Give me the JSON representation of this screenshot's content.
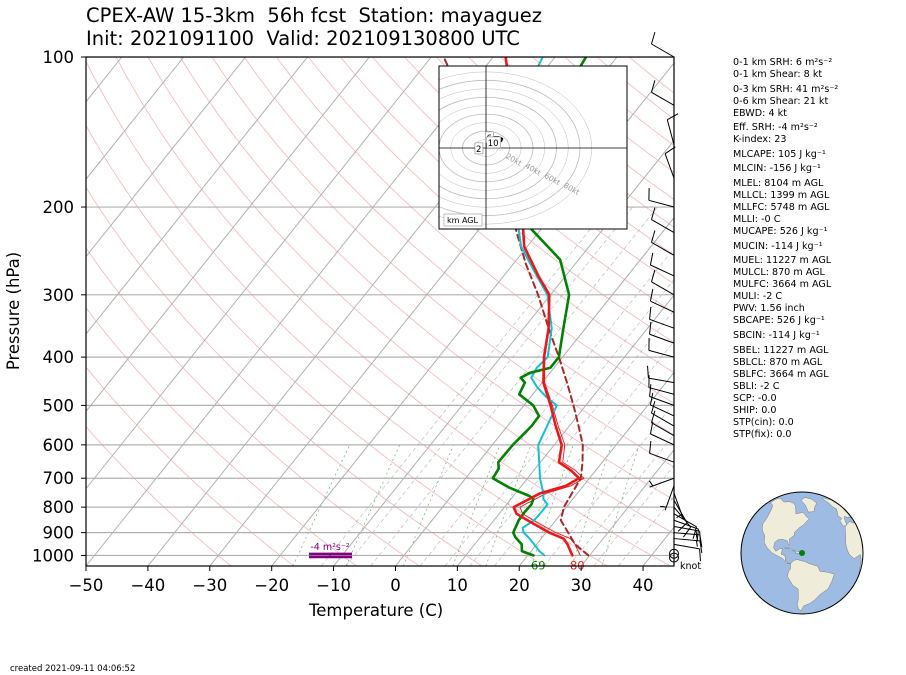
{
  "header": {
    "title_line1": "CPEX-AW 15-3km  56h fcst  Station: mayaguez",
    "title_line2": "Init: 2021091100  Valid: 202109130800 UTC"
  },
  "footer": {
    "created": "created 2021-09-11 04:06:52"
  },
  "stats": [
    {
      "text": "0-1 km SRH: 6 m²s⁻²"
    },
    {
      "text": "0-1 km Shear: 8 kt"
    },
    {
      "text": "0-3 km SRH: 41 m²s⁻²",
      "gap": true
    },
    {
      "text": "0-6 km Shear: 21 kt"
    },
    {
      "text": "EBWD: 4 kt"
    },
    {
      "text": "Eff. SRH: -4 m²s⁻²",
      "gap": true
    },
    {
      "text": "K-index: 23"
    },
    {
      "text": "MLCAPE: 105 J kg⁻¹",
      "gap": true
    },
    {
      "text": "MLCIN: -156 J kg⁻¹",
      "gap": true
    },
    {
      "text": "MLEL: 8104 m AGL",
      "gap": true
    },
    {
      "text": "MLLCL: 1399 m AGL"
    },
    {
      "text": "MLLFC: 5748 m AGL"
    },
    {
      "text": "MLLI: -0 C"
    },
    {
      "text": "MUCAPE: 526 J kg⁻¹"
    },
    {
      "text": "MUCIN: -114 J kg⁻¹",
      "gap": true
    },
    {
      "text": "MUEL: 11227 m AGL",
      "gap": true
    },
    {
      "text": "MULCL: 870 m AGL"
    },
    {
      "text": "MULFC: 3664 m AGL"
    },
    {
      "text": "MULI: -2 C"
    },
    {
      "text": "PWV: 1.56 inch"
    },
    {
      "text": "SBCAPE: 526 J kg⁻¹"
    },
    {
      "text": "SBCIN: -114 J kg⁻¹",
      "gap": true
    },
    {
      "text": "SBEL: 11227 m AGL",
      "gap": true
    },
    {
      "text": "SBLCL: 870 m AGL"
    },
    {
      "text": "SBLFC: 3664 m AGL"
    },
    {
      "text": "SBLI: -2 C"
    },
    {
      "text": "SCP: -0.0"
    },
    {
      "text": "SHIP: 0.0"
    },
    {
      "text": "STP(cin): 0.0"
    },
    {
      "text": "STP(fix): 0.0"
    }
  ],
  "chart_data": {
    "type": "line",
    "subtype": "skew-t log-p sounding",
    "xlabel": "Temperature (C)",
    "ylabel": "Pressure (hPa)",
    "xlim": [
      -50,
      45
    ],
    "ylim": [
      1050,
      100
    ],
    "y_scale": "log",
    "xticks": [
      "−50",
      "−40",
      "−30",
      "−20",
      "−10",
      "0",
      "10",
      "20",
      "30",
      "40"
    ],
    "xtick_values": [
      -50,
      -40,
      -30,
      -20,
      -10,
      0,
      10,
      20,
      30,
      40
    ],
    "yticks": [
      "100",
      "200",
      "300",
      "400",
      "500",
      "600",
      "700",
      "800",
      "900",
      "1000"
    ],
    "ytick_values": [
      100,
      200,
      300,
      400,
      500,
      600,
      700,
      800,
      900,
      1000
    ],
    "grid": true,
    "series": [
      {
        "key": "temperature",
        "color": "#e41a1c",
        "points": [
          [
            27.2,
            1000
          ],
          [
            25.0,
            950
          ],
          [
            23.6,
            925
          ],
          [
            20.5,
            900
          ],
          [
            18.0,
            875
          ],
          [
            15.4,
            850
          ],
          [
            12.8,
            825
          ],
          [
            11.5,
            800
          ],
          [
            14.0,
            750
          ],
          [
            17.2,
            725
          ],
          [
            18.3,
            700
          ],
          [
            16.0,
            675
          ],
          [
            13.0,
            650
          ],
          [
            11.2,
            600
          ],
          [
            7.8,
            550
          ],
          [
            4.3,
            500
          ],
          [
            0.2,
            450
          ],
          [
            -3.0,
            400
          ],
          [
            -6.0,
            350
          ],
          [
            -10.2,
            300
          ],
          [
            -14.4,
            275
          ],
          [
            -20.5,
            240
          ],
          [
            -26.0,
            200
          ],
          [
            -34.0,
            150
          ],
          [
            -42.0,
            120
          ],
          [
            -48.0,
            100
          ]
        ]
      },
      {
        "key": "dewpoint",
        "color": "#008000",
        "points": [
          [
            20.9,
            1000
          ],
          [
            18.5,
            980
          ],
          [
            17.6,
            950
          ],
          [
            15.7,
            920
          ],
          [
            14.7,
            900
          ],
          [
            14.0,
            850
          ],
          [
            13.9,
            820
          ],
          [
            14.0,
            790
          ],
          [
            13.6,
            770
          ],
          [
            12.6,
            760
          ],
          [
            8.1,
            730
          ],
          [
            4.4,
            700
          ],
          [
            4.1,
            670
          ],
          [
            3.2,
            650
          ],
          [
            3.3,
            600
          ],
          [
            3.9,
            550
          ],
          [
            3.8,
            525
          ],
          [
            1.5,
            500
          ],
          [
            -2.2,
            475
          ],
          [
            -2.8,
            450
          ],
          [
            -4.1,
            440
          ],
          [
            -3.2,
            430
          ],
          [
            -0.6,
            420
          ],
          [
            -0.6,
            400
          ],
          [
            -3.6,
            350
          ],
          [
            -7.0,
            300
          ],
          [
            -13.0,
            255
          ],
          [
            -22.0,
            220
          ],
          [
            -29.0,
            180
          ],
          [
            -33.0,
            150
          ],
          [
            -35.0,
            130
          ],
          [
            -34.0,
            115
          ],
          [
            -35.0,
            100
          ]
        ]
      },
      {
        "key": "parcel",
        "color": "#a52a2a",
        "style": "dashed",
        "points": [
          [
            29.8,
            1000
          ],
          [
            26.2,
            950
          ],
          [
            23.6,
            900
          ],
          [
            20.8,
            850
          ],
          [
            19.6,
            800
          ],
          [
            19.1,
            750
          ],
          [
            18.6,
            700
          ],
          [
            16.8,
            650
          ],
          [
            14.6,
            600
          ],
          [
            11.5,
            550
          ],
          [
            8.0,
            500
          ],
          [
            4.0,
            450
          ],
          [
            -0.6,
            400
          ],
          [
            -6.0,
            350
          ],
          [
            -12.0,
            300
          ],
          [
            -18.0,
            260
          ],
          [
            -28.0,
            200
          ],
          [
            -37.5,
            160
          ],
          [
            -50.0,
            120
          ],
          [
            -58.0,
            100
          ]
        ]
      },
      {
        "key": "wetbulb",
        "color": "#17becf",
        "points": [
          [
            22.7,
            1000
          ],
          [
            21.3,
            980
          ],
          [
            19.6,
            950
          ],
          [
            17.8,
            920
          ],
          [
            16.4,
            900
          ],
          [
            15.6,
            880
          ],
          [
            16.5,
            850
          ],
          [
            16.6,
            820
          ],
          [
            16.6,
            790
          ],
          [
            15.2,
            770
          ],
          [
            14.5,
            750
          ],
          [
            13.5,
            730
          ],
          [
            12.0,
            700
          ],
          [
            9.8,
            650
          ],
          [
            7.4,
            600
          ],
          [
            6.4,
            550
          ],
          [
            5.3,
            500
          ],
          [
            2.4,
            480
          ],
          [
            -0.2,
            460
          ],
          [
            -2.4,
            440
          ],
          [
            -2.8,
            420
          ],
          [
            -2.4,
            400
          ],
          [
            -5.5,
            350
          ],
          [
            -10.5,
            300
          ],
          [
            -15.5,
            270
          ],
          [
            -21.0,
            240
          ],
          [
            -27.0,
            200
          ],
          [
            -33.0,
            160
          ],
          [
            -38.0,
            135
          ],
          [
            -40.0,
            120
          ],
          [
            -42.0,
            100
          ]
        ]
      },
      {
        "key": "virtual_temperature",
        "color": "#e41a1c",
        "style": "thin",
        "points": [
          [
            28.5,
            1000
          ],
          [
            26.2,
            950
          ],
          [
            24.7,
            925
          ],
          [
            21.6,
            900
          ],
          [
            19.0,
            875
          ],
          [
            16.4,
            850
          ],
          [
            13.8,
            825
          ],
          [
            12.5,
            800
          ],
          [
            15.0,
            750
          ],
          [
            18.0,
            725
          ],
          [
            19.1,
            700
          ],
          [
            16.7,
            675
          ],
          [
            13.6,
            650
          ],
          [
            11.7,
            600
          ],
          [
            8.2,
            550
          ],
          [
            4.6,
            500
          ],
          [
            0.4,
            450
          ],
          [
            -2.9,
            400
          ],
          [
            -5.9,
            350
          ],
          [
            -10.1,
            300
          ],
          [
            -14.3,
            275
          ],
          [
            -20.4,
            240
          ],
          [
            -25.9,
            200
          ],
          [
            -33.9,
            150
          ],
          [
            -41.9,
            120
          ],
          [
            -47.9,
            100
          ]
        ]
      }
    ],
    "surface_labels": [
      {
        "text": "69",
        "color": "#008000",
        "x": 20.9,
        "p": 1000
      },
      {
        "text": "80",
        "color": "#e41a1c",
        "x": 27.2,
        "p": 1000
      }
    ],
    "effective_srh": {
      "label": "-4 m²s⁻²",
      "color": "#800080",
      "p_top": 993,
      "p_bottom": 1007
    },
    "wind_barbs": [
      {
        "p": 1010,
        "speed": 0,
        "dir": 0
      },
      {
        "p": 992,
        "speed": 0,
        "dir": 0
      },
      {
        "p": 950,
        "speed": 10,
        "dir": 100
      },
      {
        "p": 925,
        "speed": 15,
        "dir": 95
      },
      {
        "p": 900,
        "speed": 15,
        "dir": 95
      },
      {
        "p": 875,
        "speed": 15,
        "dir": 100
      },
      {
        "p": 850,
        "speed": 10,
        "dir": 110
      },
      {
        "p": 825,
        "speed": 10,
        "dir": 120
      },
      {
        "p": 800,
        "speed": 10,
        "dir": 140
      },
      {
        "p": 775,
        "speed": 10,
        "dir": 150
      },
      {
        "p": 750,
        "speed": 5,
        "dir": 160
      },
      {
        "p": 725,
        "speed": 5,
        "dir": 200
      },
      {
        "p": 700,
        "speed": 5,
        "dir": 250
      },
      {
        "p": 650,
        "speed": 10,
        "dir": 290
      },
      {
        "p": 600,
        "speed": 10,
        "dir": 295
      },
      {
        "p": 575,
        "speed": 10,
        "dir": 300
      },
      {
        "p": 550,
        "speed": 10,
        "dir": 300
      },
      {
        "p": 525,
        "speed": 10,
        "dir": 295
      },
      {
        "p": 500,
        "speed": 10,
        "dir": 290
      },
      {
        "p": 475,
        "speed": 10,
        "dir": 285
      },
      {
        "p": 450,
        "speed": 10,
        "dir": 280
      },
      {
        "p": 400,
        "speed": 10,
        "dir": 285
      },
      {
        "p": 375,
        "speed": 10,
        "dir": 290
      },
      {
        "p": 350,
        "speed": 10,
        "dir": 290
      },
      {
        "p": 325,
        "speed": 10,
        "dir": 295
      },
      {
        "p": 300,
        "speed": 10,
        "dir": 300
      },
      {
        "p": 275,
        "speed": 10,
        "dir": 295
      },
      {
        "p": 250,
        "speed": 10,
        "dir": 300
      },
      {
        "p": 225,
        "speed": 10,
        "dir": 300
      },
      {
        "p": 200,
        "speed": 10,
        "dir": 285
      },
      {
        "p": 175,
        "speed": 10,
        "dir": 340
      },
      {
        "p": 150,
        "speed": 10,
        "dir": 345
      },
      {
        "p": 125,
        "speed": 10,
        "dir": 300
      },
      {
        "p": 100,
        "speed": 10,
        "dir": 300
      }
    ],
    "barb_unit_label": "knot",
    "hodograph": {
      "range_kt": 40,
      "ring_labels": [
        "20kt",
        "40kt",
        "60kt",
        "80kt"
      ],
      "ring_speeds": [
        20,
        40,
        60,
        80
      ],
      "corner_label": "km AGL",
      "trace_color": "#000000",
      "points_kt": [
        [
          2,
          3
        ],
        [
          4,
          3
        ],
        [
          6,
          4
        ],
        [
          8,
          3
        ],
        [
          6,
          5
        ],
        [
          3,
          4
        ],
        [
          6,
          5
        ],
        [
          9,
          6
        ],
        [
          13,
          8
        ],
        [
          14,
          11
        ],
        [
          11,
          13
        ],
        [
          7,
          13
        ],
        [
          6,
          11
        ],
        [
          8,
          9
        ],
        [
          9,
          8
        ],
        [
          10,
          6
        ]
      ],
      "height_labels": [
        {
          "text": "2",
          "u": -6,
          "v": -1
        },
        {
          "text": "6",
          "u": 3,
          "v": 12
        },
        {
          "text": "10",
          "u": 4,
          "v": 6
        }
      ]
    },
    "globe": {
      "station_lon": -67.1,
      "station_lat": 18.2,
      "marker_color": "#008000",
      "ocean_color": "#9dbbe3",
      "land_color": "#efedd9"
    }
  }
}
